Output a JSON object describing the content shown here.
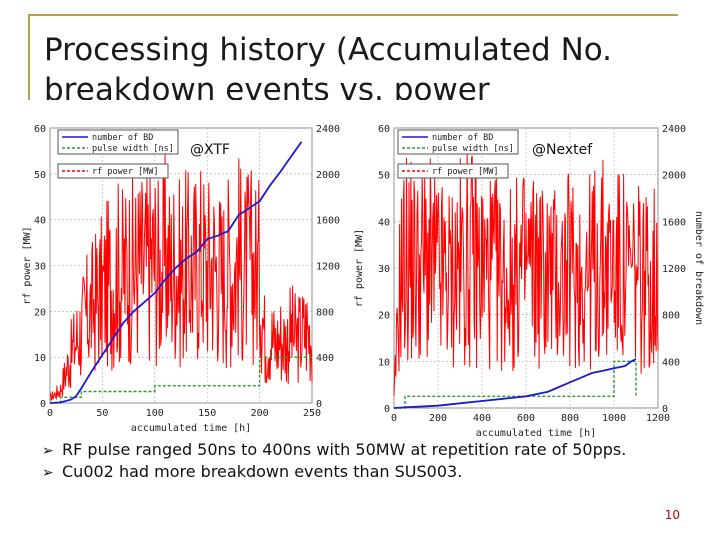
{
  "slide": {
    "title": "Processing history (Accumulated No. breakdown events vs. power",
    "bullets": [
      "RF pulse ranged 50ns to 400ns with 50MW at repetition rate of 50pps.",
      "Cu002 had more breakdown events than SUS003."
    ],
    "page_number": "10",
    "colors": {
      "power": "#ff0000",
      "breakdowns": "#1a1ad0",
      "pulse_width": "#2a9a2a",
      "frame": "#b5a04a",
      "page_number": "#c00000"
    }
  },
  "chart_data": [
    {
      "type": "line",
      "tag": "@XTF",
      "xlabel": "accumulated time [h]",
      "ylabel_left": "rf power [MW]",
      "ylabel_right": "",
      "xlim": [
        0,
        250
      ],
      "ylim_left": [
        0,
        60
      ],
      "ylim_right": [
        0,
        2400
      ],
      "x_ticks": [
        0,
        50,
        100,
        150,
        200,
        250
      ],
      "y_ticks_left": [
        0,
        10,
        20,
        30,
        40,
        50,
        60
      ],
      "y_ticks_right": [
        0,
        400,
        800,
        1200,
        1600,
        2000,
        2400
      ],
      "legend": [
        "number of BD",
        "pulse width [ns]",
        "rf power [MW]"
      ],
      "series": [
        {
          "name": "number of BD",
          "axis": "right",
          "x": [
            0,
            10,
            20,
            25,
            30,
            40,
            50,
            60,
            70,
            80,
            90,
            100,
            110,
            120,
            130,
            140,
            150,
            160,
            170,
            180,
            190,
            200,
            210,
            220,
            230,
            240
          ],
          "y": [
            0,
            5,
            30,
            60,
            130,
            280,
            420,
            560,
            700,
            800,
            880,
            960,
            1080,
            1180,
            1260,
            1320,
            1430,
            1460,
            1500,
            1640,
            1700,
            1760,
            1900,
            2020,
            2150,
            2280
          ]
        },
        {
          "name": "pulse width [ns]",
          "axis": "right",
          "x": [
            0,
            10,
            10,
            30,
            30,
            100,
            100,
            200,
            200,
            250
          ],
          "y": [
            0,
            0,
            50,
            50,
            100,
            100,
            150,
            150,
            400,
            400
          ]
        },
        {
          "name": "rf power [MW]",
          "axis": "left",
          "x": [
            0,
            10,
            15,
            20,
            25,
            30,
            35,
            40,
            45,
            50,
            55,
            60,
            65,
            70,
            75,
            80,
            85,
            90,
            95,
            100,
            105,
            110,
            115,
            120,
            125,
            130,
            135,
            140,
            145,
            150,
            155,
            160,
            165,
            170,
            175,
            180,
            185,
            190,
            195,
            200,
            205,
            210,
            215,
            220,
            225,
            230,
            235,
            240,
            245,
            250
          ],
          "y": [
            2,
            5,
            12,
            18,
            24,
            28,
            33,
            36,
            40,
            42,
            45,
            47,
            50,
            48,
            52,
            50,
            53,
            51,
            54,
            55,
            49,
            56,
            50,
            54,
            48,
            52,
            50,
            53,
            55,
            51,
            54,
            50,
            48,
            52,
            50,
            56,
            49,
            53,
            51,
            50,
            24,
            26,
            22,
            25,
            23,
            27,
            24,
            26,
            28,
            25
          ]
        }
      ]
    },
    {
      "type": "line",
      "tag": "@Nextef",
      "xlabel": "accumulated time [h]",
      "ylabel_left": "rf power [MW]",
      "ylabel_right": "number of breakdown",
      "xlim": [
        0,
        1200
      ],
      "ylim_left": [
        0,
        60
      ],
      "ylim_right": [
        0,
        2400
      ],
      "x_ticks": [
        0,
        200,
        400,
        600,
        800,
        1000,
        1200
      ],
      "y_ticks_left": [
        0,
        10,
        20,
        30,
        40,
        50,
        60
      ],
      "y_ticks_right": [
        0,
        400,
        800,
        1200,
        1600,
        2000,
        2400
      ],
      "legend": [
        "number of BD",
        "pulse width [ns]",
        "rf power [MW]"
      ],
      "series": [
        {
          "name": "number of BD",
          "axis": "right",
          "x": [
            0,
            50,
            100,
            200,
            300,
            400,
            500,
            600,
            700,
            750,
            800,
            850,
            900,
            950,
            1000,
            1050,
            1080,
            1100
          ],
          "y": [
            0,
            5,
            10,
            20,
            40,
            60,
            80,
            100,
            140,
            180,
            220,
            260,
            300,
            320,
            340,
            360,
            400,
            420
          ]
        },
        {
          "name": "pulse width [ns]",
          "axis": "right",
          "x": [
            0,
            50,
            50,
            1000,
            1000,
            1100,
            1100
          ],
          "y": [
            0,
            0,
            100,
            100,
            400,
            400,
            100
          ]
        },
        {
          "name": "rf power [MW]",
          "axis": "left",
          "x": [
            0,
            30,
            60,
            100,
            150,
            200,
            250,
            300,
            350,
            400,
            450,
            500,
            550,
            600,
            650,
            700,
            750,
            800,
            850,
            900,
            950,
            1000,
            1050,
            1100
          ],
          "y": [
            3,
            50,
            57,
            52,
            55,
            50,
            48,
            54,
            56,
            52,
            51,
            47,
            49,
            53,
            52,
            50,
            48,
            51,
            50,
            52,
            54,
            53,
            50,
            48
          ]
        }
      ]
    }
  ]
}
